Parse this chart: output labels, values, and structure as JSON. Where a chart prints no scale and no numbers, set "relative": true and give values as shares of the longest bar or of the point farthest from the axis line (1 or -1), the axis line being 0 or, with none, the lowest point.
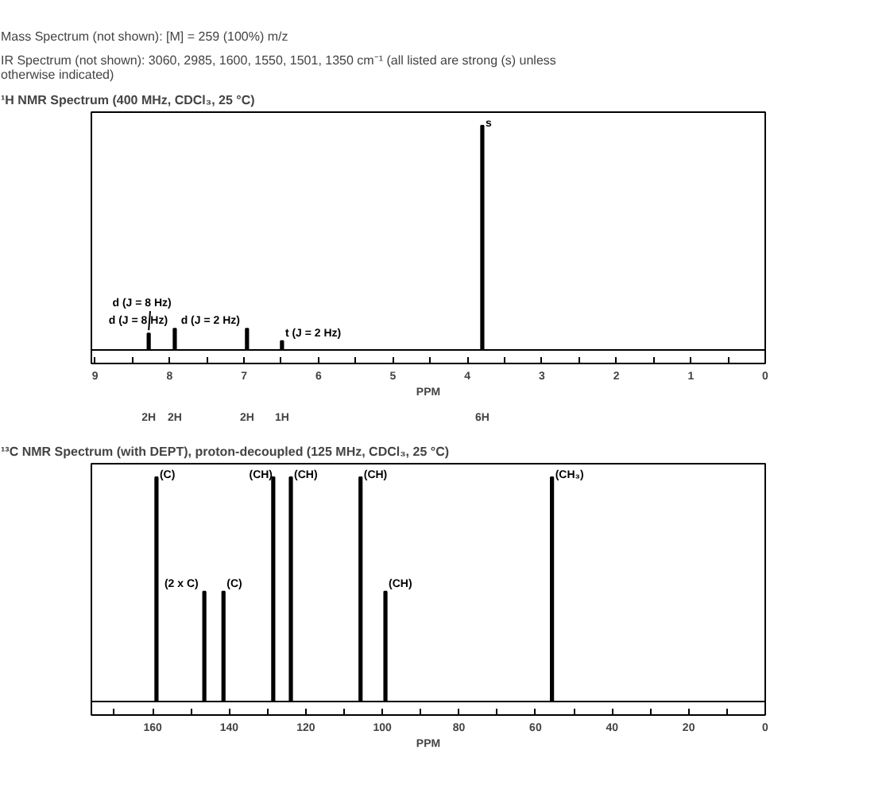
{
  "chart_data": [
    {
      "type": "bar",
      "title": "¹H NMR Spectrum (400 MHz, CDCl₃, 25 °C)",
      "annotations": [
        "Mass Spectrum (not shown): [M] = 259 (100%) m/z",
        "IR Spectrum (not shown): 3060, 2985, 1600, 1550, 1501, 1350 cm⁻¹ (all listed are strong (s) unless otherwise indicated)",
        {
          "text": "d (J = 8 Hz)",
          "x": 8.28,
          "y": 0.074
        },
        {
          "text": "d (J = 8 Hz)",
          "x": 7.93,
          "y": 0.095
        },
        {
          "text": "d (J = 2 Hz)",
          "x": 6.96,
          "y": 0.095
        },
        {
          "text": "t (J = 2 Hz)",
          "x": 6.49,
          "y": 0.04
        },
        {
          "text": "s",
          "x": 3.8,
          "y": 1
        },
        "2H",
        "2H",
        "2H",
        "1H",
        "6H"
      ],
      "xlabel": "PPM",
      "relative": true,
      "color": "#000000",
      "x": [
        8.28,
        7.93,
        6.96,
        6.49,
        3.8
      ],
      "values": [
        0.074,
        0.095,
        0.095,
        0.04,
        1
      ],
      "xlim": [
        9.05,
        0
      ],
      "xticks": [
        0,
        {
          "value": 0.5,
          "label": null
        },
        1,
        {
          "value": 1.5,
          "label": null
        },
        2,
        {
          "value": 2.5,
          "label": null
        },
        3,
        {
          "value": 3.5,
          "label": null
        },
        4,
        {
          "value": 4.5,
          "label": null
        },
        5,
        {
          "value": 5.5,
          "label": null
        },
        6,
        {
          "value": 6.5,
          "label": null
        },
        7,
        {
          "value": 7.5,
          "label": null
        },
        8,
        {
          "value": 8.5,
          "label": null
        },
        9
      ],
      "grid": false
    },
    {
      "type": "bar",
      "title": "¹³C NMR Spectrum (with DEPT), proton-decoupled (125 MHz, CDCl₃, 25 °C)",
      "annotations": [
        {
          "text": "(C)",
          "x": 159.0,
          "y": 1
        },
        {
          "text": "(2 x C)",
          "x": 146.5,
          "y": 0.49
        },
        {
          "text": "(C)",
          "x": 141.5,
          "y": 0.49
        },
        {
          "text": "(CH)",
          "x": 128.5,
          "y": 1
        },
        {
          "text": "(CH)",
          "x": 123.9,
          "y": 1
        },
        {
          "text": "(CH)",
          "x": 105.7,
          "y": 1
        },
        {
          "text": "(CH)",
          "x": 99.2,
          "y": 0.49
        },
        {
          "text": "(CH₃)",
          "x": 55.7,
          "y": 1
        }
      ],
      "xlabel": "PPM",
      "relative": true,
      "color": "#000000",
      "x": [
        159.0,
        146.5,
        141.5,
        128.5,
        123.9,
        105.7,
        99.2,
        55.7
      ],
      "values": [
        1,
        0.49,
        0.49,
        1,
        1,
        1,
        0.49,
        1
      ],
      "xlim": [
        176,
        0
      ],
      "xticks": [
        0,
        {
          "value": 10,
          "label": null
        },
        20,
        {
          "value": 30,
          "label": null
        },
        40,
        {
          "value": 50,
          "label": null
        },
        60,
        {
          "value": 70,
          "label": null
        },
        80,
        {
          "value": 90,
          "label": null
        },
        100,
        {
          "value": 110,
          "label": null
        },
        120,
        {
          "value": 130,
          "label": null
        },
        140,
        {
          "value": 150,
          "label": null
        },
        160,
        {
          "value": 170,
          "label": null
        }
      ],
      "grid": false
    }
  ]
}
